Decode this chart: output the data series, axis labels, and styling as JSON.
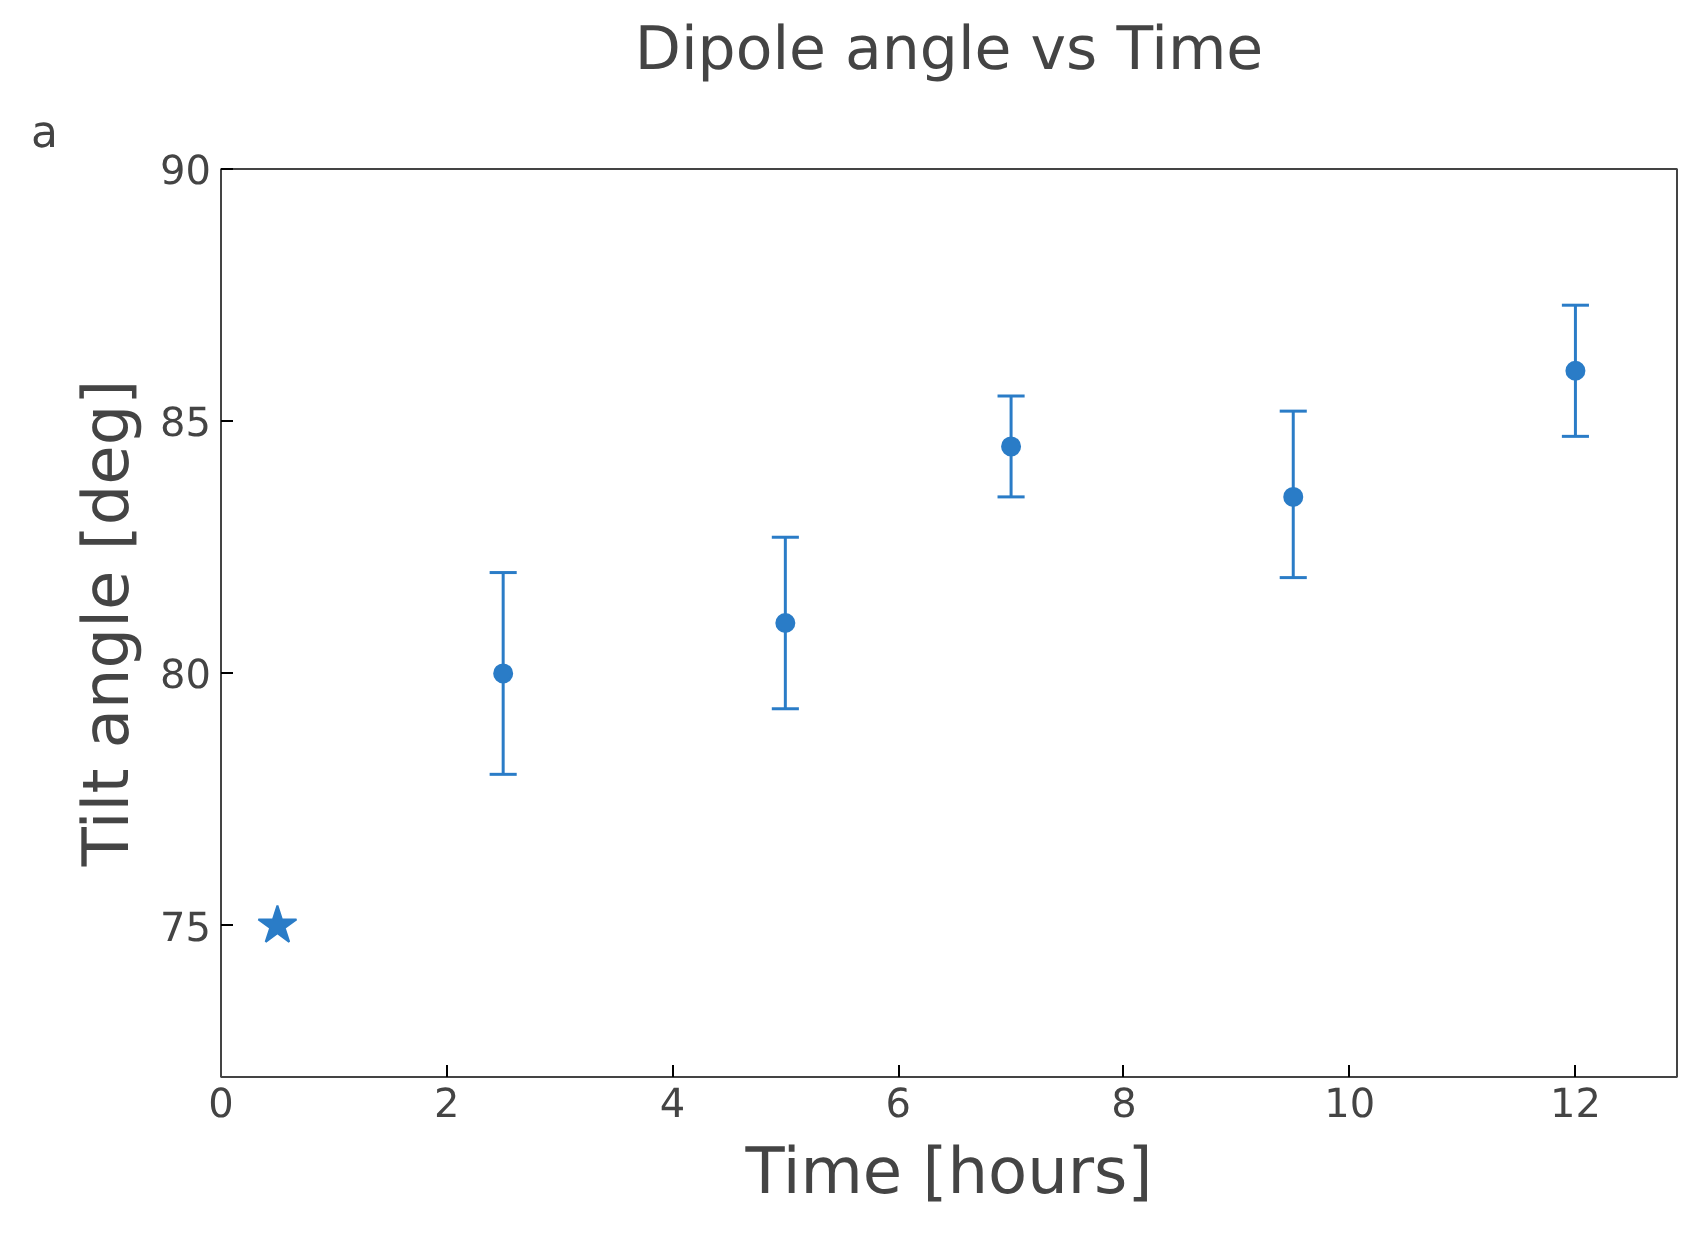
{
  "chart_data": {
    "type": "scatter",
    "title": "Dipole angle vs Time",
    "xlabel": "Time [hours]",
    "ylabel": "Tilt angle [deg]",
    "annotations": [
      "a"
    ],
    "series": [
      {
        "color": "#2a7cc7",
        "marker": "star",
        "x": [
          0.5
        ],
        "values": [
          75
        ]
      },
      {
        "color": "#2a7cc7",
        "marker": "circle",
        "x": [
          2.5,
          5,
          7,
          9.5,
          12
        ],
        "values": [
          80,
          81,
          84.5,
          83.5,
          86
        ],
        "errors": [
          [
            78,
            82
          ],
          [
            79.3,
            82.7
          ],
          [
            83.5,
            85.5
          ],
          [
            81.9,
            85.2
          ],
          [
            84.7,
            87.3
          ]
        ]
      }
    ],
    "xlim": [
      0,
      12.9
    ],
    "xticks": [
      0,
      2,
      4,
      6,
      8,
      10,
      12
    ],
    "ylim": [
      72,
      90
    ],
    "yticks": [
      75,
      80,
      85,
      90
    ],
    "grid": false
  }
}
